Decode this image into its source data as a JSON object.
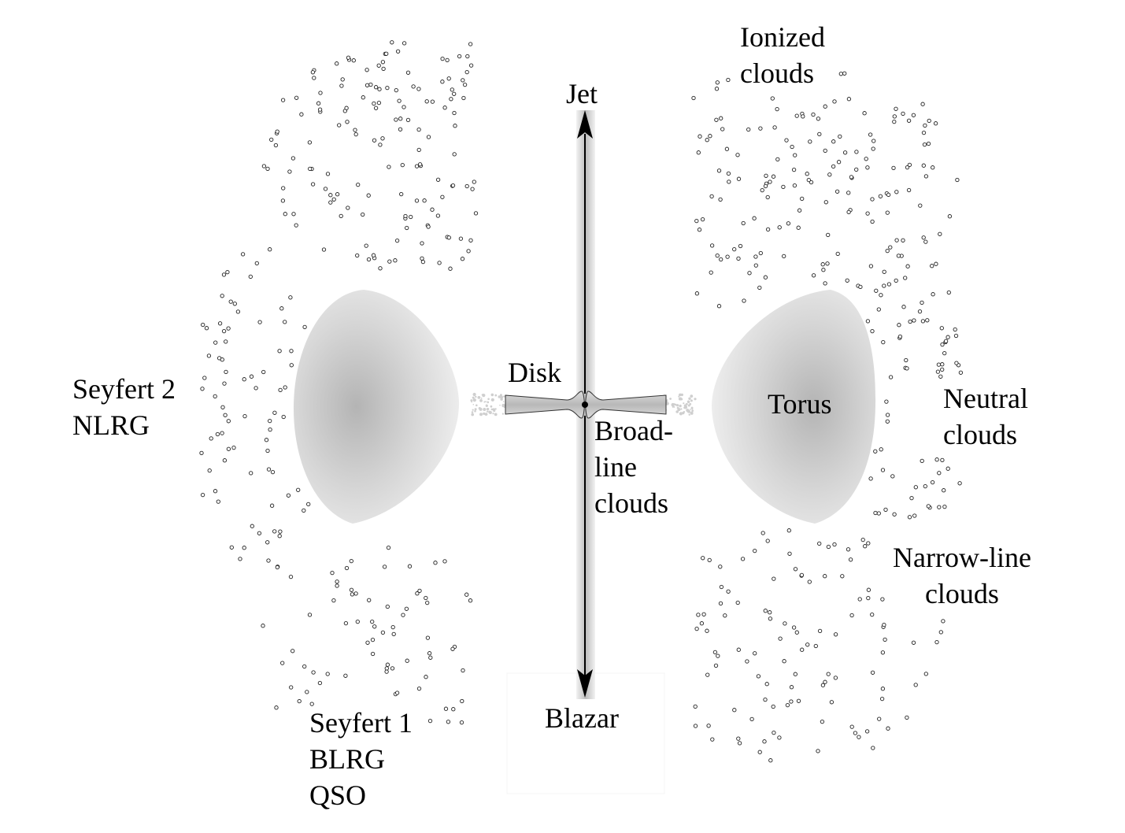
{
  "labels": {
    "jet": "Jet",
    "ionized_clouds": [
      "Ionized",
      "clouds"
    ],
    "seyfert2_nlrg": [
      "Seyfert 2",
      "NLRG"
    ],
    "disk": "Disk",
    "torus": "Torus",
    "neutral_clouds": [
      "Neutral",
      "clouds"
    ],
    "broad_line_clouds": [
      "Broad-",
      "line",
      "clouds"
    ],
    "narrow_line_clouds": [
      "Narrow-line",
      "clouds"
    ],
    "blazar": "Blazar",
    "seyfert1_blrg_qso": [
      "Seyfert 1",
      "BLRG",
      "QSO"
    ]
  },
  "colors": {
    "ink": "#000000",
    "torus_center": "#b4b4b4",
    "torus_edge": "#eeeeee",
    "jet_shade": "#c8c8c8",
    "disk_fill": "#c4c4c4"
  },
  "icons": {
    "jet_up": "arrow-up-icon",
    "jet_down": "arrow-down-icon",
    "clouds": "small-circle-icon"
  }
}
